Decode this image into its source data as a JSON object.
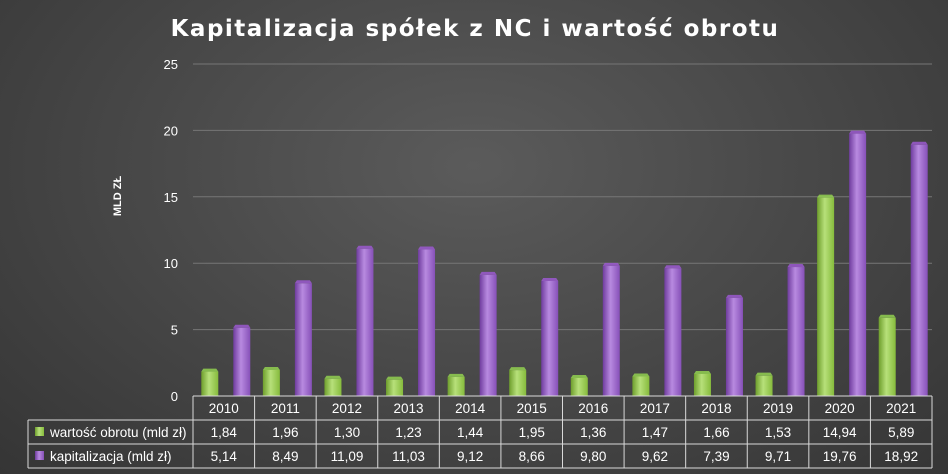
{
  "chart_data": {
    "type": "bar",
    "title": "Kapitalizacja spółek z NC i wartość obrotu",
    "ylabel": "MLD ZŁ",
    "ylim": [
      0,
      25
    ],
    "yticks": [
      "0",
      "5",
      "10",
      "15",
      "20",
      "25"
    ],
    "grid": true,
    "categories": [
      "2010",
      "2011",
      "2012",
      "2013",
      "2014",
      "2015",
      "2016",
      "2017",
      "2018",
      "2019",
      "2020",
      "2021"
    ],
    "series": [
      {
        "name": "wartość obrotu (mld zł)",
        "values": [
          1.84,
          1.96,
          1.3,
          1.23,
          1.44,
          1.95,
          1.36,
          1.47,
          1.66,
          1.53,
          14.94,
          5.89
        ],
        "labels": [
          "1,84",
          "1,96",
          "1,30",
          "1,23",
          "1,44",
          "1,95",
          "1,36",
          "1,47",
          "1,66",
          "1,53",
          "14,94",
          "5,89"
        ],
        "color": "#92d050"
      },
      {
        "name": "kapitalizacja (mld zł)",
        "values": [
          5.14,
          8.49,
          11.09,
          11.03,
          9.12,
          8.66,
          9.8,
          9.62,
          7.39,
          9.71,
          19.76,
          18.92
        ],
        "labels": [
          "5,14",
          "8,49",
          "11,09",
          "11,03",
          "9,12",
          "8,66",
          "9,80",
          "9,62",
          "7,39",
          "9,71",
          "19,76",
          "18,92"
        ],
        "color": "#9b59d0"
      }
    ]
  }
}
